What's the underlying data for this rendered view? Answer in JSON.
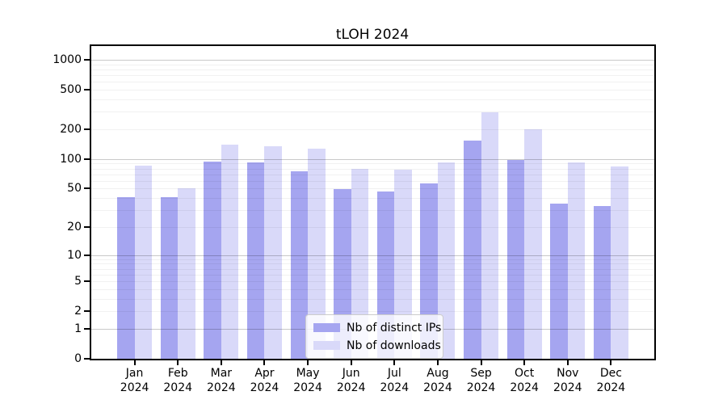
{
  "title": "tLOH 2024",
  "legend": {
    "items": [
      {
        "label": "Nb of distinct IPs",
        "color": "#a5a5f0"
      },
      {
        "label": "Nb of downloads",
        "color": "#d9d9f9"
      }
    ]
  },
  "colors": {
    "bar_distinct_ips": "#a5a5f0",
    "bar_downloads": "#d9d9f9",
    "major_grid": "#c9c9c9",
    "minor_grid": "#f0f0f0",
    "axis": "#000000"
  },
  "chart_data": {
    "type": "bar",
    "title": "tLOH 2024",
    "categories": [
      "Jan 2024",
      "Feb 2024",
      "Mar 2024",
      "Apr 2024",
      "May 2024",
      "Jun 2024",
      "Jul 2024",
      "Aug 2024",
      "Sep 2024",
      "Oct 2024",
      "Nov 2024",
      "Dec 2024"
    ],
    "x_axis": {
      "months": [
        "Jan",
        "Feb",
        "Mar",
        "Apr",
        "May",
        "Jun",
        "Jul",
        "Aug",
        "Sep",
        "Oct",
        "Nov",
        "Dec"
      ],
      "year": "2024"
    },
    "series": [
      {
        "name": "Nb of distinct IPs",
        "color": "#a5a5f0",
        "values": [
          41,
          41,
          95,
          93,
          75,
          49,
          47,
          57,
          155,
          97,
          35,
          33
        ]
      },
      {
        "name": "Nb of downloads",
        "color": "#d9d9f9",
        "values": [
          85,
          50,
          140,
          135,
          128,
          80,
          78,
          92,
          295,
          200,
          93,
          84
        ]
      }
    ],
    "y_axis": {
      "scale": "log1p",
      "tick_values": [
        1000,
        500,
        200,
        100,
        50,
        20,
        10,
        5,
        2,
        1,
        0
      ],
      "tick_labels": [
        "1000",
        "500",
        "200",
        "100",
        "50",
        "20",
        "10",
        "5",
        "2",
        "1",
        "0"
      ],
      "minor_grid_values": [
        2,
        3,
        4,
        6,
        7,
        8,
        9,
        20,
        30,
        40,
        60,
        70,
        80,
        90,
        200,
        300,
        400,
        600,
        700,
        800,
        900,
        500,
        50,
        5
      ],
      "major_grid_values": [
        1,
        10,
        100,
        1000
      ],
      "ylim": [
        0,
        1370
      ]
    },
    "grid": "horizontal",
    "legend_position": "lower center inside"
  }
}
